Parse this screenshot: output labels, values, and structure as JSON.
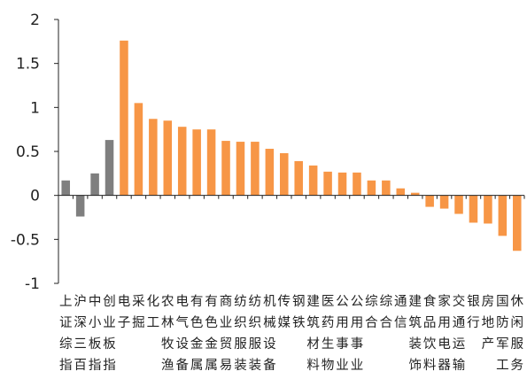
{
  "chart_data": {
    "type": "bar",
    "title": "",
    "xlabel": "",
    "ylabel": "",
    "ylim": [
      -1,
      2
    ],
    "yticks": [
      -1,
      -0.5,
      0,
      0.5,
      1,
      1.5,
      2
    ],
    "ytick_labels": [
      "-1",
      "-0.5",
      "0",
      "0.5",
      "1",
      "1.5",
      "2"
    ],
    "grid": false,
    "legend": "none",
    "colors": {
      "index": "#7f7f7f",
      "industry": "#f79646",
      "axis": "#222222"
    },
    "categories": [
      "上证综指",
      "沪深三百",
      "中小板指",
      "创业板指",
      "电子",
      "采掘",
      "化工",
      "农林牧渔",
      "电气设备",
      "有色金属",
      "有色金属",
      "商贸",
      "纺织服装",
      "纺织服装",
      "机械设备",
      "传媒",
      "钢铁",
      "建筑材料",
      "医药生物",
      "公用事业",
      "公用事业",
      "综合",
      "综合",
      "通信",
      "建筑装饰",
      "食品饮料",
      "家用电器",
      "交通运输",
      "银行",
      "房地产",
      "国防军工",
      "休闲服务"
    ],
    "label_rows": [
      [
        "上",
        "沪",
        "中",
        "创",
        "电",
        "采",
        "化",
        "农",
        "电",
        "有",
        "有",
        "商",
        "纺",
        "纺",
        "机",
        "传",
        "钢",
        "建",
        "医",
        "公",
        "公",
        "综",
        "综",
        "通",
        "建",
        "食",
        "家",
        "交",
        "银",
        "房",
        "国",
        "休"
      ],
      [
        "证",
        "深",
        "小",
        "业",
        "子",
        "掘",
        "工",
        "林",
        "气",
        "色",
        "色",
        "业",
        "织",
        "织",
        "械",
        "媒",
        "铁",
        "筑",
        "药",
        "用",
        "用",
        "合",
        "合",
        "信",
        "筑",
        "品",
        "用",
        "通",
        "行",
        "地",
        "防",
        "闲"
      ],
      [
        "综",
        "三",
        "板",
        "板",
        "",
        "",
        "",
        "牧",
        "设",
        "金",
        "金",
        "贸",
        "服",
        "服",
        "设",
        "",
        "",
        "材",
        "生",
        "事",
        "事",
        "",
        "",
        "",
        "装",
        "饮",
        "电",
        "运",
        "",
        "产",
        "军",
        "服"
      ],
      [
        "指",
        "百",
        "指",
        "指",
        "",
        "",
        "",
        "渔",
        "备",
        "属",
        "属",
        "易",
        "装",
        "装",
        "备",
        "",
        "",
        "料",
        "物",
        "业",
        "业",
        "",
        "",
        "",
        "饰",
        "料",
        "器",
        "输",
        "",
        "",
        "工",
        "务"
      ]
    ],
    "series": [
      {
        "values": [
          0.17,
          -0.24,
          0.25,
          0.63,
          1.76,
          1.05,
          0.87,
          0.85,
          0.78,
          0.75,
          0.75,
          0.62,
          0.61,
          0.61,
          0.53,
          0.48,
          0.39,
          0.34,
          0.27,
          0.26,
          0.26,
          0.17,
          0.17,
          0.08,
          0.03,
          -0.13,
          -0.15,
          -0.21,
          -0.31,
          -0.32,
          -0.46,
          -0.63
        ],
        "bar_colors": [
          "#7f7f7f",
          "#7f7f7f",
          "#7f7f7f",
          "#7f7f7f",
          "#f79646",
          "#f79646",
          "#f79646",
          "#f79646",
          "#f79646",
          "#f79646",
          "#f79646",
          "#f79646",
          "#f79646",
          "#f79646",
          "#f79646",
          "#f79646",
          "#f79646",
          "#f79646",
          "#f79646",
          "#f79646",
          "#f79646",
          "#f79646",
          "#f79646",
          "#f79646",
          "#f79646",
          "#f79646",
          "#f79646",
          "#f79646",
          "#f79646",
          "#f79646",
          "#f79646",
          "#f79646"
        ]
      }
    ]
  }
}
